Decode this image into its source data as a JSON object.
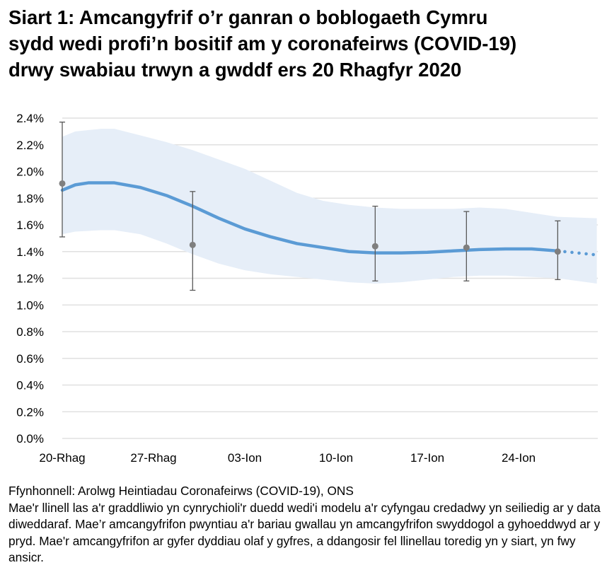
{
  "chart_data": {
    "type": "line",
    "title": "Siart 1: Amcangyfrif o’r ganran o boblogaeth Cymru sydd wedi profi’n bositif am y coronafeirws (COVID-19) drwy swabiau trwyn a gwddf ers 20 Rhagfyr 2020",
    "title_lines": [
      "Siart 1: Amcangyfrif o’r ganran o boblogaeth Cymru",
      "sydd wedi profi’n bositif am y coronafeirws (COVID-19)",
      "drwy swabiau trwyn a gwddf ers 20 Rhagfyr 2020"
    ],
    "ylim": [
      0,
      2.4
    ],
    "yticks": [
      "0.0%",
      "0.2%",
      "0.4%",
      "0.6%",
      "0.8%",
      "1.0%",
      "1.2%",
      "1.4%",
      "1.6%",
      "1.8%",
      "2.0%",
      "2.2%",
      "2.4%"
    ],
    "xlim": [
      "2020-12-20",
      "2021-01-30"
    ],
    "xticks": [
      {
        "date": "2020-12-20",
        "label": "20-Rhag"
      },
      {
        "date": "2020-12-27",
        "label": "27-Rhag"
      },
      {
        "date": "2021-01-03",
        "label": "03-Ion"
      },
      {
        "date": "2021-01-10",
        "label": "10-Ion"
      },
      {
        "date": "2021-01-17",
        "label": "17-Ion"
      },
      {
        "date": "2021-01-24",
        "label": "24-Ion"
      }
    ],
    "grid": true,
    "colors": {
      "trend": "#5B9BD5",
      "band": "#E6EEF8",
      "points": "#7F7F7F",
      "errorbars": "#595959",
      "grid": "#E0E0E0"
    },
    "modelled_trend": [
      [
        "2020-12-20",
        1.86
      ],
      [
        "2020-12-21",
        1.9
      ],
      [
        "2020-12-22",
        1.915
      ],
      [
        "2020-12-24",
        1.915
      ],
      [
        "2020-12-26",
        1.88
      ],
      [
        "2020-12-28",
        1.82
      ],
      [
        "2020-12-30",
        1.74
      ],
      [
        "2021-01-01",
        1.65
      ],
      [
        "2021-01-03",
        1.57
      ],
      [
        "2021-01-05",
        1.51
      ],
      [
        "2021-01-07",
        1.46
      ],
      [
        "2021-01-09",
        1.43
      ],
      [
        "2021-01-11",
        1.4
      ],
      [
        "2021-01-13",
        1.39
      ],
      [
        "2021-01-15",
        1.39
      ],
      [
        "2021-01-17",
        1.395
      ],
      [
        "2021-01-19",
        1.405
      ],
      [
        "2021-01-21",
        1.415
      ],
      [
        "2021-01-23",
        1.42
      ],
      [
        "2021-01-25",
        1.42
      ],
      [
        "2021-01-27",
        1.405
      ]
    ],
    "modelled_trend_uncertain": [
      [
        "2021-01-27",
        1.405
      ],
      [
        "2021-01-30",
        1.375
      ]
    ],
    "credible_interval": [
      [
        "2020-12-20",
        1.53,
        2.26
      ],
      [
        "2020-12-21",
        1.55,
        2.3
      ],
      [
        "2020-12-23",
        1.56,
        2.32
      ],
      [
        "2020-12-24",
        1.56,
        2.32
      ],
      [
        "2020-12-26",
        1.53,
        2.27
      ],
      [
        "2020-12-28",
        1.46,
        2.22
      ],
      [
        "2020-12-30",
        1.38,
        2.16
      ],
      [
        "2021-01-01",
        1.31,
        2.09
      ],
      [
        "2021-01-03",
        1.26,
        2.02
      ],
      [
        "2021-01-05",
        1.23,
        1.93
      ],
      [
        "2021-01-07",
        1.21,
        1.84
      ],
      [
        "2021-01-09",
        1.19,
        1.78
      ],
      [
        "2021-01-11",
        1.17,
        1.75
      ],
      [
        "2021-01-13",
        1.16,
        1.73
      ],
      [
        "2021-01-15",
        1.17,
        1.72
      ],
      [
        "2021-01-17",
        1.19,
        1.72
      ],
      [
        "2021-01-19",
        1.21,
        1.72
      ],
      [
        "2021-01-21",
        1.22,
        1.73
      ],
      [
        "2021-01-23",
        1.22,
        1.72
      ],
      [
        "2021-01-25",
        1.21,
        1.69
      ],
      [
        "2021-01-27",
        1.2,
        1.66
      ],
      [
        "2021-01-30",
        1.16,
        1.65
      ]
    ],
    "official_estimates": [
      {
        "date": "2020-12-20",
        "value": 1.91,
        "lower": 1.51,
        "upper": 2.37
      },
      {
        "date": "2020-12-30",
        "value": 1.45,
        "lower": 1.11,
        "upper": 1.85
      },
      {
        "date": "2021-01-13",
        "value": 1.44,
        "lower": 1.18,
        "upper": 1.74
      },
      {
        "date": "2021-01-20",
        "value": 1.43,
        "lower": 1.18,
        "upper": 1.7
      },
      {
        "date": "2021-01-27",
        "value": 1.4,
        "lower": 1.19,
        "upper": 1.63
      }
    ]
  },
  "notes": {
    "source": "Ffynhonnell: Arolwg Heintiadau Coronafeirws (COVID-19), ONS",
    "description": "Mae'r llinell las a'r graddliwio yn cynrychioli'r duedd wedi'i modelu a'r cyfyngau credadwy yn seiliedig ar y data diweddaraf. Mae’r amcangyfrifon pwyntiau a'r bariau gwallau yn amcangyfrifon swyddogol a gyhoeddwyd ar y pryd. Mae'r amcangyfrifon ar gyfer dyddiau olaf y gyfres, a ddangosir fel llinellau toredig yn y siart, yn fwy ansicr."
  }
}
